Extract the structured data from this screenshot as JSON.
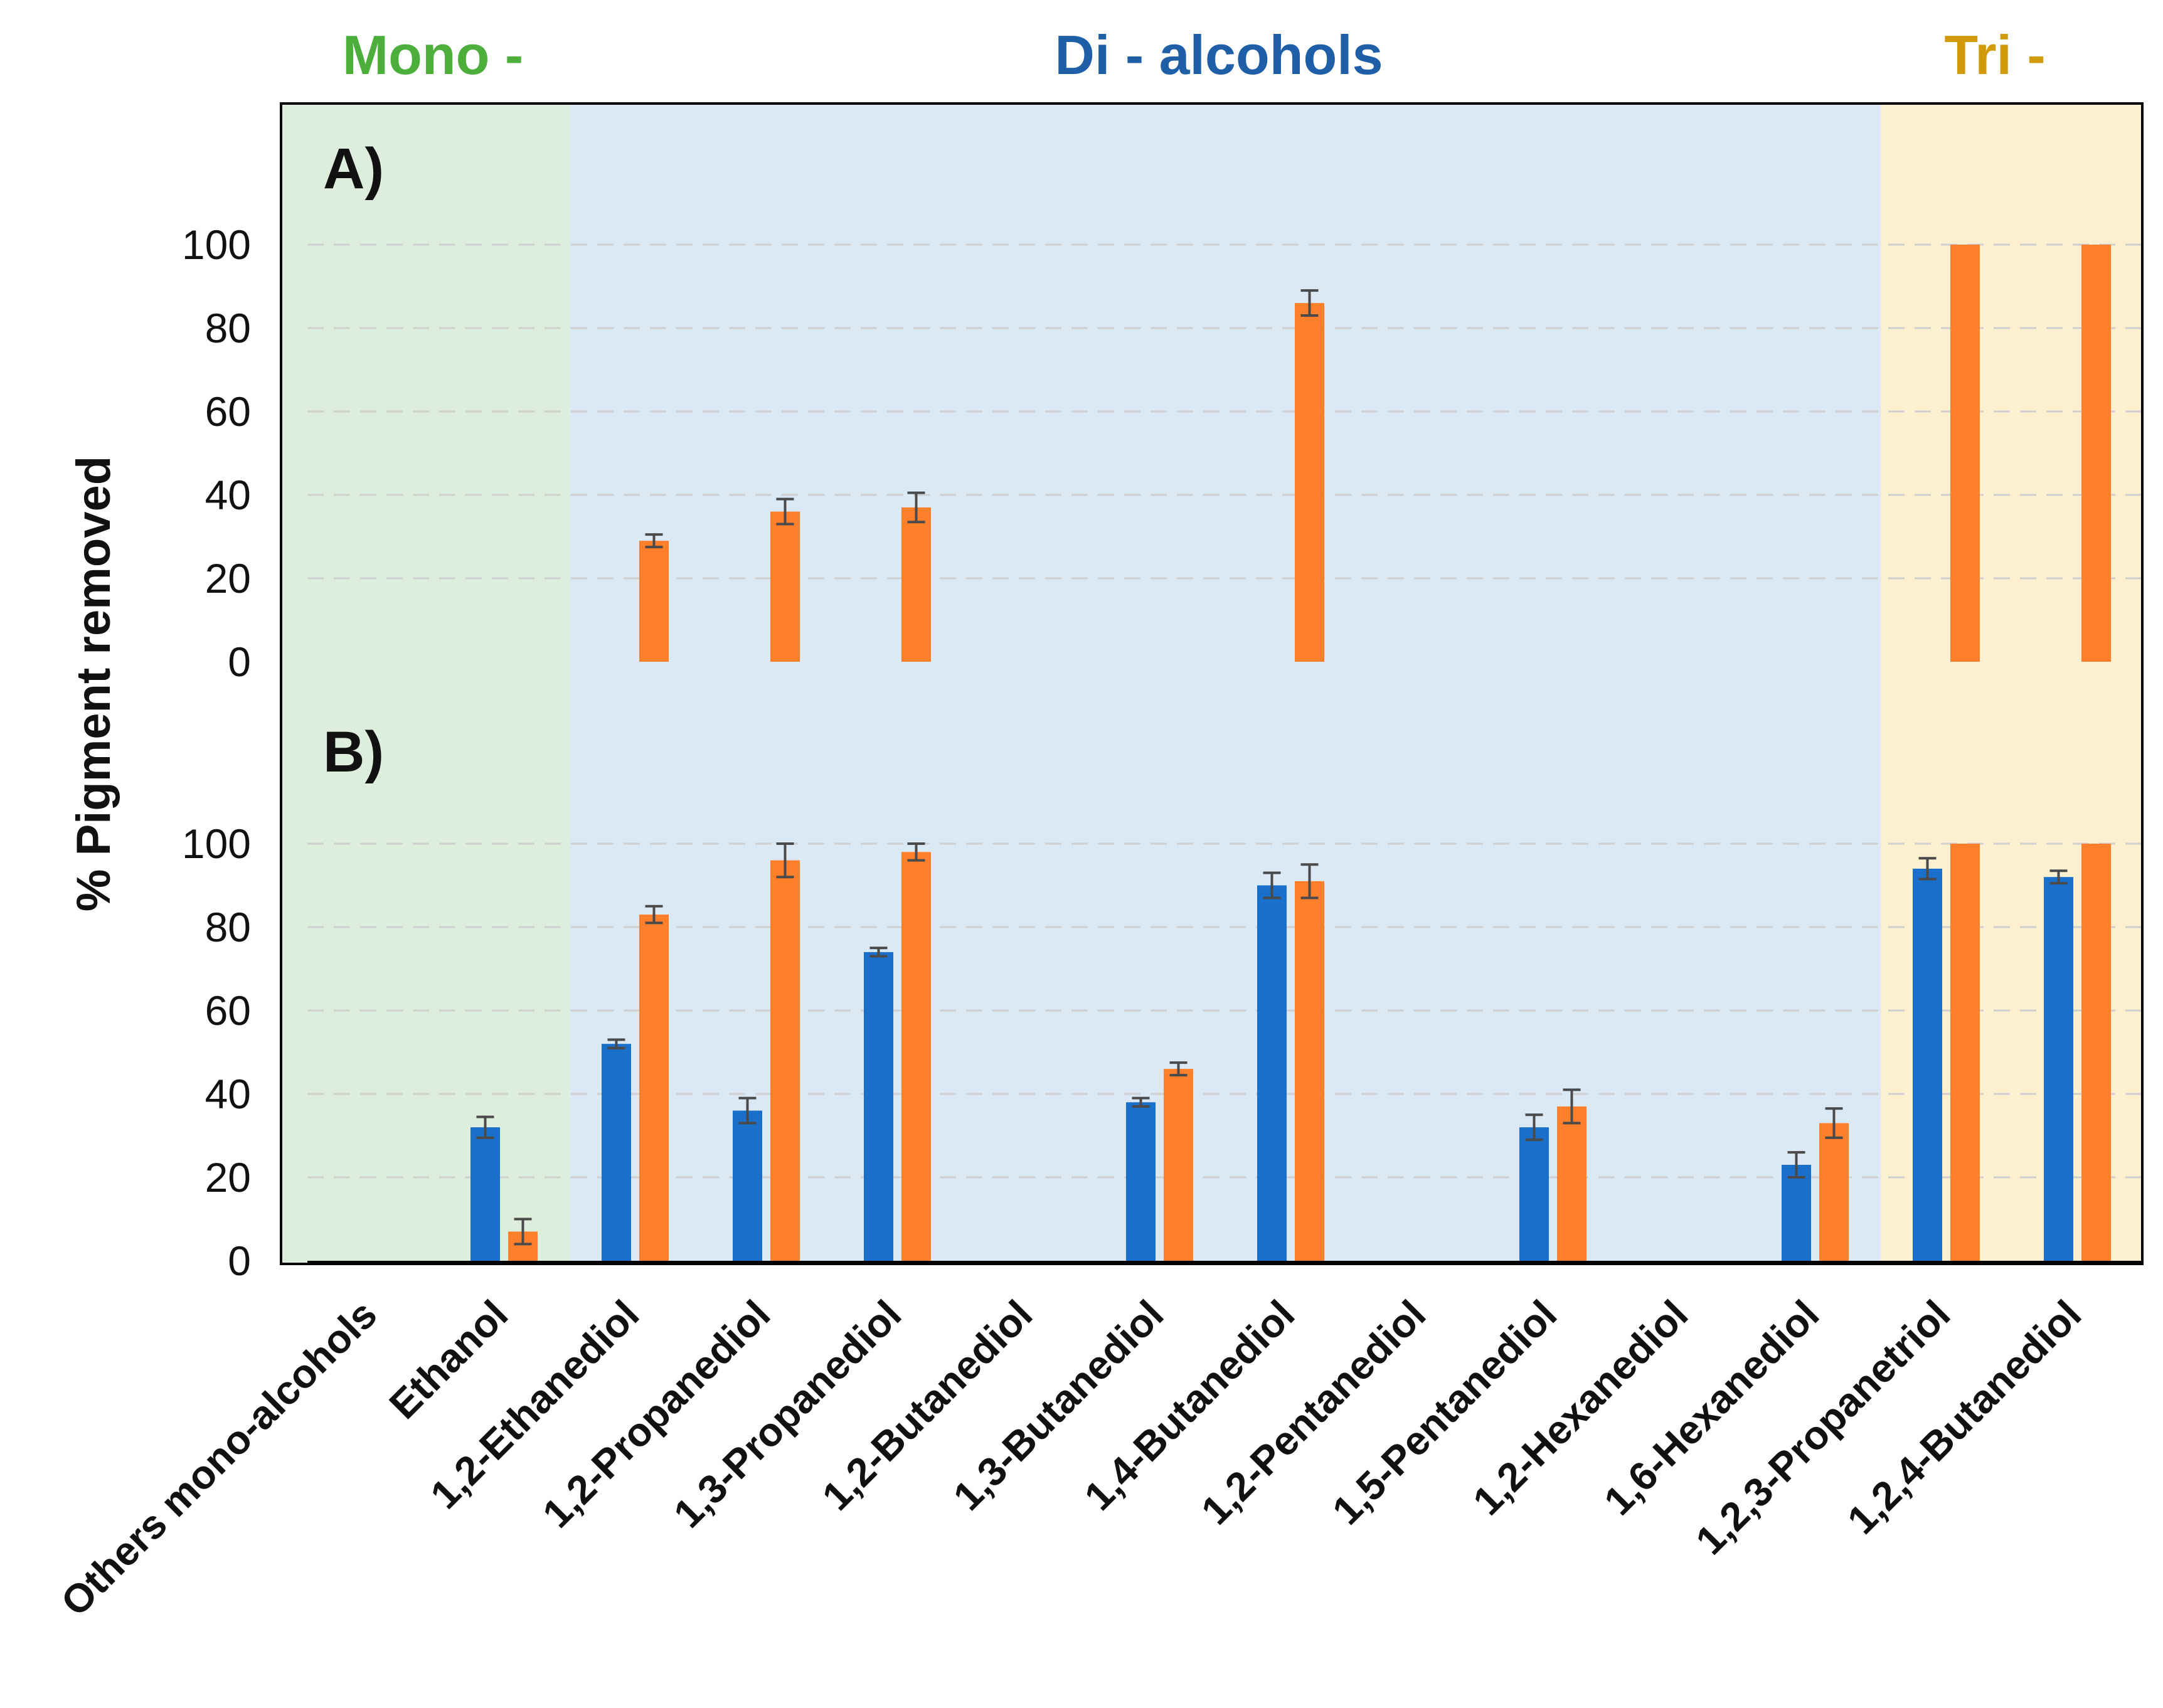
{
  "chart_data": {
    "type": "bar",
    "ylabel": "% Pigment removed",
    "ylim": [
      0,
      100
    ],
    "yticks": [
      "0",
      "20",
      "40",
      "60",
      "80",
      "100"
    ],
    "categories": [
      "Others mono-alcohols",
      "Ethanol",
      "1,2-Ethanediol",
      "1,2-Propanediol",
      "1,3-Propanediol",
      "1,2-Butanediol",
      "1,3-Butanediol",
      "1,4-Butanediol",
      "1,2-Pentanediol",
      "1,5-Pentanediol",
      "1,2-Hexanediol",
      "1,6-Hexanediol",
      "1,2,3-Propanetriol",
      "1,2,4-Butanediol"
    ],
    "groups": [
      {
        "label": "Mono -",
        "color": "#4caf3c",
        "background": "#ddeedd",
        "from": 0,
        "to": 1
      },
      {
        "label": "Di - alcohols",
        "color": "#1f5fa8",
        "background": "#dbe9f5",
        "from": 2,
        "to": 11
      },
      {
        "label": "Tri -",
        "color": "#d19a0a",
        "background": "#fdf0d0",
        "from": 12,
        "to": 13
      }
    ],
    "series_colors": {
      "blue": "#1a6fcb",
      "orange": "#ff7f2a"
    },
    "panels": [
      {
        "label": "A)",
        "series": [
          {
            "name": "orange",
            "values": [
              null,
              null,
              29,
              36,
              37,
              null,
              null,
              86,
              null,
              null,
              null,
              null,
              100,
              100
            ],
            "errors": [
              null,
              null,
              1.5,
              3,
              3.5,
              null,
              null,
              3,
              null,
              null,
              null,
              null,
              null,
              null
            ]
          }
        ]
      },
      {
        "label": "B)",
        "series": [
          {
            "name": "blue",
            "values": [
              null,
              32,
              52,
              36,
              74,
              null,
              38,
              90,
              null,
              32,
              null,
              23,
              94,
              92
            ],
            "errors": [
              null,
              2.5,
              1,
              3,
              1,
              null,
              1,
              3,
              null,
              3,
              null,
              3,
              2.5,
              1.5
            ]
          },
          {
            "name": "orange",
            "values": [
              null,
              7,
              83,
              96,
              98,
              null,
              46,
              91,
              null,
              37,
              null,
              33,
              100,
              100
            ],
            "errors": [
              null,
              3,
              2,
              4,
              2,
              null,
              1.5,
              4,
              null,
              4,
              null,
              3.5,
              null,
              null
            ]
          }
        ]
      }
    ]
  }
}
